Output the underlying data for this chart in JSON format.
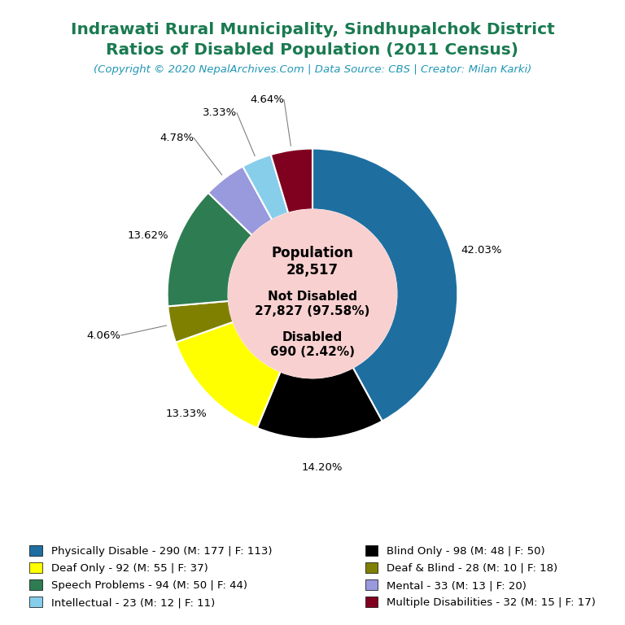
{
  "title_line1": "Indrawati Rural Municipality, Sindhupalchok District",
  "title_line2": "Ratios of Disabled Population (2011 Census)",
  "subtitle": "(Copyright © 2020 NepalArchives.Com | Data Source: CBS | Creator: Milan Karki)",
  "title_color": "#1a7a50",
  "subtitle_color": "#2196b5",
  "center_bg": "#f9d0d0",
  "slices": [
    {
      "label": "Physically Disable - 290 (M: 177 | F: 113)",
      "value": 290,
      "color": "#1e6fa0"
    },
    {
      "label": "Blind Only - 98 (M: 48 | F: 50)",
      "value": 98,
      "color": "#000000"
    },
    {
      "label": "Deaf Only - 92 (M: 55 | F: 37)",
      "value": 92,
      "color": "#ffff00"
    },
    {
      "label": "Deaf & Blind - 28 (M: 10 | F: 18)",
      "value": 28,
      "color": "#808000"
    },
    {
      "label": "Speech Problems - 94 (M: 50 | F: 44)",
      "value": 94,
      "color": "#2e7d52"
    },
    {
      "label": "Mental - 33 (M: 13 | F: 20)",
      "value": 33,
      "color": "#9999dd"
    },
    {
      "label": "Intellectual - 23 (M: 12 | F: 11)",
      "value": 23,
      "color": "#87ceeb"
    },
    {
      "label": "Multiple Disabilities - 32 (M: 15 | F: 17)",
      "value": 32,
      "color": "#800020"
    }
  ],
  "bg_color": "#ffffff",
  "legend_fontsize": 9.5,
  "title_fontsize": 14.5,
  "subtitle_fontsize": 9.5
}
